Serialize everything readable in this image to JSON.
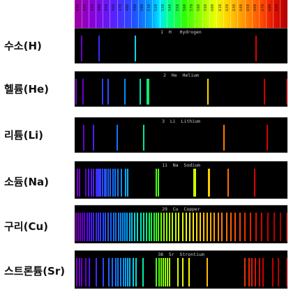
{
  "scale": {
    "wavelength_ticks": [
      "410",
      "420",
      "430",
      "440",
      "450",
      "460",
      "470",
      "480",
      "490",
      "500",
      "510",
      "520",
      "530",
      "540",
      "550",
      "560",
      "570",
      "580",
      "590",
      "600",
      "610",
      "620",
      "630",
      "640",
      "650",
      "660",
      "670",
      "680",
      "690"
    ],
    "range_nm": [
      400,
      700
    ]
  },
  "spectra": [
    {
      "label": "수소(H)",
      "caption": "1  H   Hydrogen",
      "lines": [
        {
          "nm": 410,
          "color": "#6a00c8"
        },
        {
          "nm": 434,
          "color": "#3a2cff"
        },
        {
          "nm": 486,
          "color": "#00d8e8"
        },
        {
          "nm": 656,
          "color": "#e00000"
        }
      ]
    },
    {
      "label": "헬륨(He)",
      "caption": "2  He  Helium",
      "lines": [
        {
          "nm": 402,
          "color": "#7a00c0"
        },
        {
          "nm": 412,
          "color": "#6c00d0"
        },
        {
          "nm": 439,
          "color": "#3040ff"
        },
        {
          "nm": 447,
          "color": "#2a50ff"
        },
        {
          "nm": 471,
          "color": "#0090ff"
        },
        {
          "nm": 492,
          "color": "#00e0c0"
        },
        {
          "nm": 502,
          "color": "#00f080"
        },
        {
          "nm": 504,
          "color": "#20e060"
        },
        {
          "nm": 588,
          "color": "#ffd800"
        },
        {
          "nm": 668,
          "color": "#d00000"
        },
        {
          "nm": 707,
          "color": "#9a0000"
        }
      ]
    },
    {
      "label": "리튬(Li)",
      "caption": "3  Li  Lithium",
      "lines": [
        {
          "nm": 413,
          "color": "#6a00d0"
        },
        {
          "nm": 427,
          "color": "#4a20ff"
        },
        {
          "nm": 460,
          "color": "#1870ff"
        },
        {
          "nm": 497,
          "color": "#00e8a0"
        },
        {
          "nm": 610,
          "color": "#ff7a00"
        },
        {
          "nm": 671,
          "color": "#d80000"
        }
      ]
    },
    {
      "label": "소듐(Na)",
      "caption": "11  Na  Sodium",
      "lines": [
        {
          "nm": 404,
          "color": "#7a00c0"
        },
        {
          "nm": 407,
          "color": "#7000c8"
        },
        {
          "nm": 416,
          "color": "#6000d8"
        },
        {
          "nm": 420,
          "color": "#5a10e8"
        },
        {
          "nm": 424,
          "color": "#5018f0"
        },
        {
          "nm": 427,
          "color": "#4820f8"
        },
        {
          "nm": 430,
          "color": "#4028ff"
        },
        {
          "nm": 432,
          "color": "#3830ff"
        },
        {
          "nm": 434,
          "color": "#3438ff"
        },
        {
          "nm": 436,
          "color": "#3040ff"
        },
        {
          "nm": 439,
          "color": "#2a48ff"
        },
        {
          "nm": 442,
          "color": "#2550ff"
        },
        {
          "nm": 444,
          "color": "#2258ff"
        },
        {
          "nm": 447,
          "color": "#2060ff"
        },
        {
          "nm": 450,
          "color": "#1c68ff"
        },
        {
          "nm": 454,
          "color": "#1870ff"
        },
        {
          "nm": 457,
          "color": "#1478ff"
        },
        {
          "nm": 461,
          "color": "#1080ff"
        },
        {
          "nm": 466,
          "color": "#0890ff"
        },
        {
          "nm": 472,
          "color": "#00a8ff"
        },
        {
          "nm": 475,
          "color": "#00b8ff"
        },
        {
          "nm": 515,
          "color": "#40ff10"
        },
        {
          "nm": 518,
          "color": "#58ff08"
        },
        {
          "nm": 568,
          "color": "#c8ff00"
        },
        {
          "nm": 570,
          "color": "#d0ff00"
        },
        {
          "nm": 589,
          "color": "#ffd000"
        },
        {
          "nm": 590,
          "color": "#ffc800"
        },
        {
          "nm": 616,
          "color": "#ff7000"
        },
        {
          "nm": 654,
          "color": "#e00000"
        }
      ]
    },
    {
      "label": "구리(Cu)",
      "caption": "29  Cu  Copper",
      "lines": [
        {
          "nm": 402,
          "color": "#7a00c0"
        },
        {
          "nm": 405,
          "color": "#7800c4"
        },
        {
          "nm": 408,
          "color": "#7000c8"
        },
        {
          "nm": 411,
          "color": "#6800d0"
        },
        {
          "nm": 414,
          "color": "#6000d8"
        },
        {
          "nm": 418,
          "color": "#5810e0"
        },
        {
          "nm": 421,
          "color": "#5018e8"
        },
        {
          "nm": 424,
          "color": "#4c1cf0"
        },
        {
          "nm": 427,
          "color": "#4620f8"
        },
        {
          "nm": 430,
          "color": "#4028ff"
        },
        {
          "nm": 433,
          "color": "#3830ff"
        },
        {
          "nm": 436,
          "color": "#3040ff"
        },
        {
          "nm": 440,
          "color": "#2a48ff"
        },
        {
          "nm": 443,
          "color": "#2550ff"
        },
        {
          "nm": 447,
          "color": "#2060ff"
        },
        {
          "nm": 451,
          "color": "#1868ff"
        },
        {
          "nm": 455,
          "color": "#1470ff"
        },
        {
          "nm": 458,
          "color": "#1078ff"
        },
        {
          "nm": 462,
          "color": "#0c80ff"
        },
        {
          "nm": 465,
          "color": "#0888ff"
        },
        {
          "nm": 468,
          "color": "#0490ff"
        },
        {
          "nm": 471,
          "color": "#0098ff"
        },
        {
          "nm": 474,
          "color": "#00a8ff"
        },
        {
          "nm": 478,
          "color": "#00b8f8"
        },
        {
          "nm": 481,
          "color": "#00c8f0"
        },
        {
          "nm": 485,
          "color": "#00d8e8"
        },
        {
          "nm": 489,
          "color": "#00e4d0"
        },
        {
          "nm": 493,
          "color": "#00ecc0"
        },
        {
          "nm": 497,
          "color": "#00f0a8"
        },
        {
          "nm": 501,
          "color": "#00f890"
        },
        {
          "nm": 505,
          "color": "#00ff70"
        },
        {
          "nm": 508,
          "color": "#10ff50"
        },
        {
          "nm": 512,
          "color": "#28ff30"
        },
        {
          "nm": 515,
          "color": "#40ff18"
        },
        {
          "nm": 518,
          "color": "#58ff08"
        },
        {
          "nm": 522,
          "color": "#70ff00"
        },
        {
          "nm": 526,
          "color": "#88ff00"
        },
        {
          "nm": 530,
          "color": "#98ff00"
        },
        {
          "nm": 534,
          "color": "#a8ff00"
        },
        {
          "nm": 538,
          "color": "#b8ff00"
        },
        {
          "nm": 543,
          "color": "#c8ff00"
        },
        {
          "nm": 547,
          "color": "#d8ff00"
        },
        {
          "nm": 552,
          "color": "#e4ff00"
        },
        {
          "nm": 557,
          "color": "#f0ff00"
        },
        {
          "nm": 562,
          "color": "#f8f400"
        },
        {
          "nm": 567,
          "color": "#ffe800"
        },
        {
          "nm": 572,
          "color": "#ffdc00"
        },
        {
          "nm": 577,
          "color": "#ffd000"
        },
        {
          "nm": 582,
          "color": "#ffc400"
        },
        {
          "nm": 587,
          "color": "#ffb800"
        },
        {
          "nm": 592,
          "color": "#ffac00"
        },
        {
          "nm": 597,
          "color": "#ffa000"
        },
        {
          "nm": 603,
          "color": "#ff9000"
        },
        {
          "nm": 608,
          "color": "#ff8000"
        },
        {
          "nm": 614,
          "color": "#ff7000"
        },
        {
          "nm": 620,
          "color": "#ff6000"
        },
        {
          "nm": 626,
          "color": "#ff5000"
        },
        {
          "nm": 633,
          "color": "#f84000"
        },
        {
          "nm": 640,
          "color": "#f03000"
        },
        {
          "nm": 648,
          "color": "#e82000"
        },
        {
          "nm": 656,
          "color": "#e01000"
        },
        {
          "nm": 664,
          "color": "#d80000"
        },
        {
          "nm": 672,
          "color": "#c80000"
        },
        {
          "nm": 681,
          "color": "#b80000"
        },
        {
          "nm": 690,
          "color": "#a80000"
        },
        {
          "nm": 699,
          "color": "#980000"
        }
      ]
    },
    {
      "label": "스트론튬(Sr)",
      "caption": "38  Sr  Strontium",
      "lines": [
        {
          "nm": 403,
          "color": "#7a00c0"
        },
        {
          "nm": 407,
          "color": "#7000c8"
        },
        {
          "nm": 410,
          "color": "#6a00d0"
        },
        {
          "nm": 416,
          "color": "#6000d8"
        },
        {
          "nm": 421,
          "color": "#5018e8"
        },
        {
          "nm": 430,
          "color": "#4028ff"
        },
        {
          "nm": 440,
          "color": "#2a48ff"
        },
        {
          "nm": 448,
          "color": "#2060ff"
        },
        {
          "nm": 453,
          "color": "#1a6cff"
        },
        {
          "nm": 458,
          "color": "#1078ff"
        },
        {
          "nm": 461,
          "color": "#0c80ff"
        },
        {
          "nm": 465,
          "color": "#0888ff"
        },
        {
          "nm": 469,
          "color": "#0494ff"
        },
        {
          "nm": 472,
          "color": "#00a0ff"
        },
        {
          "nm": 475,
          "color": "#00b0ff"
        },
        {
          "nm": 478,
          "color": "#00c0f8"
        },
        {
          "nm": 483,
          "color": "#00d0f0"
        },
        {
          "nm": 487,
          "color": "#00dce0"
        },
        {
          "nm": 496,
          "color": "#00f0a8"
        },
        {
          "nm": 515,
          "color": "#40ff18"
        },
        {
          "nm": 519,
          "color": "#58ff08"
        },
        {
          "nm": 522,
          "color": "#70ff00"
        },
        {
          "nm": 525,
          "color": "#84ff00"
        },
        {
          "nm": 528,
          "color": "#90ff00"
        },
        {
          "nm": 531,
          "color": "#9cff00"
        },
        {
          "nm": 534,
          "color": "#a8ff00"
        },
        {
          "nm": 546,
          "color": "#d4ff00"
        },
        {
          "nm": 552,
          "color": "#e4ff00"
        },
        {
          "nm": 561,
          "color": "#f8f400"
        },
        {
          "nm": 587,
          "color": "#ffb800"
        },
        {
          "nm": 640,
          "color": "#f03000"
        },
        {
          "nm": 646,
          "color": "#e82800"
        },
        {
          "nm": 650,
          "color": "#e41800"
        },
        {
          "nm": 655,
          "color": "#e01000"
        },
        {
          "nm": 661,
          "color": "#d80800"
        },
        {
          "nm": 666,
          "color": "#d00000"
        },
        {
          "nm": 679,
          "color": "#c00000"
        },
        {
          "nm": 687,
          "color": "#b00000"
        },
        {
          "nm": 707,
          "color": "#900000"
        }
      ]
    }
  ]
}
